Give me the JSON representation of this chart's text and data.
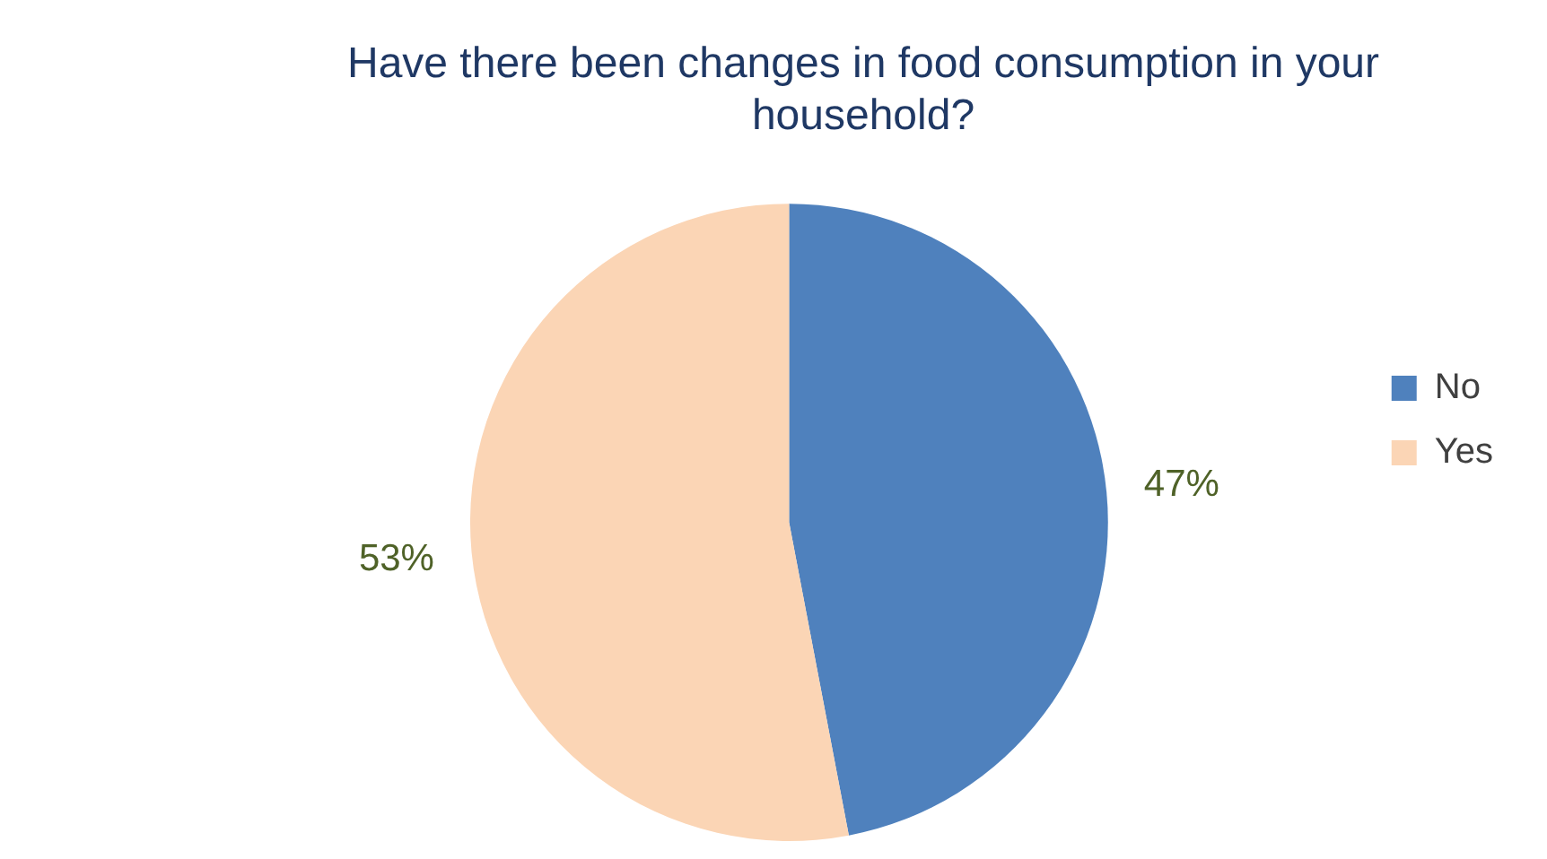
{
  "chart_data": {
    "type": "pie",
    "title": "Have there been changes in food consumption in your household?",
    "categories": [
      "No",
      "Yes"
    ],
    "values": [
      47,
      53
    ],
    "colors": [
      "#4f81bd",
      "#fbd5b5"
    ],
    "value_labels": [
      "47%",
      "53%"
    ],
    "legend": "right"
  }
}
